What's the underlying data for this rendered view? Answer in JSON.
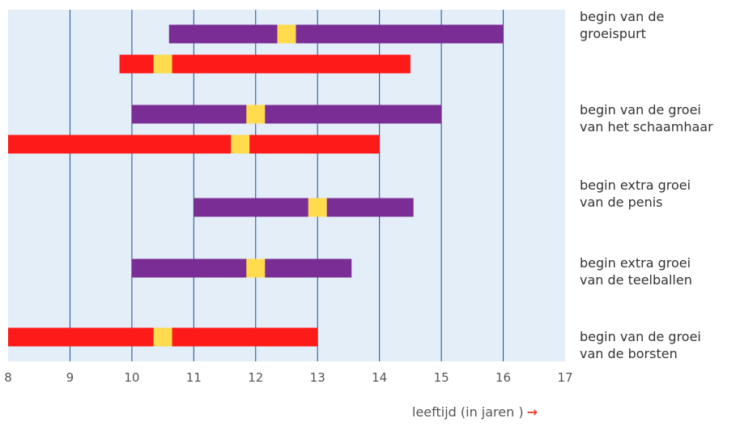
{
  "chart_data": {
    "type": "bar",
    "subtype": "horizontal range bars with median marker",
    "xlim": [
      8,
      17
    ],
    "xticks": [
      8,
      9,
      10,
      11,
      12,
      13,
      14,
      15,
      16,
      17
    ],
    "xlabel": "leeftijd (in jaren )",
    "grid": true,
    "colors": {
      "purple": "#7b2d96",
      "red": "#ff1a1a",
      "marker": "#ffdb4d",
      "plot_bg": "#e3eef8",
      "grid": "#174d90",
      "xlabel_arrow": "#ee3d2a"
    },
    "rows": [
      {
        "label": "begin van de groeispurt",
        "label_lines": [
          "begin van de",
          "groeispurt"
        ],
        "bars": [
          {
            "color": "purple",
            "start": 10.6,
            "end": 16.0,
            "marker": 12.5
          },
          {
            "color": "red",
            "start": 9.8,
            "end": 14.5,
            "marker": 10.5
          }
        ]
      },
      {
        "label": "begin van de groei van het schaamhaar",
        "label_lines": [
          "begin van de groei",
          "van het schaamhaar"
        ],
        "bars": [
          {
            "color": "purple",
            "start": 10.0,
            "end": 15.0,
            "marker": 12.0
          },
          {
            "color": "red",
            "start": 8.0,
            "end": 14.0,
            "marker": 11.75
          }
        ]
      },
      {
        "label": "begin extra groei van de penis",
        "label_lines": [
          "begin extra groei",
          "van de penis"
        ],
        "bars": [
          {
            "color": "purple",
            "start": 11.0,
            "end": 14.55,
            "marker": 13.0
          }
        ]
      },
      {
        "label": "begin extra groei van de teelballen",
        "label_lines": [
          "begin extra groei",
          "van de teelballen"
        ],
        "bars": [
          {
            "color": "purple",
            "start": 10.0,
            "end": 13.55,
            "marker": 12.0
          }
        ]
      },
      {
        "label": "begin van de groei van de borsten",
        "label_lines": [
          "begin van de groei",
          "van de borsten"
        ],
        "bars": [
          {
            "color": "red",
            "start": 8.0,
            "end": 13.0,
            "marker": 10.5
          }
        ]
      }
    ]
  }
}
